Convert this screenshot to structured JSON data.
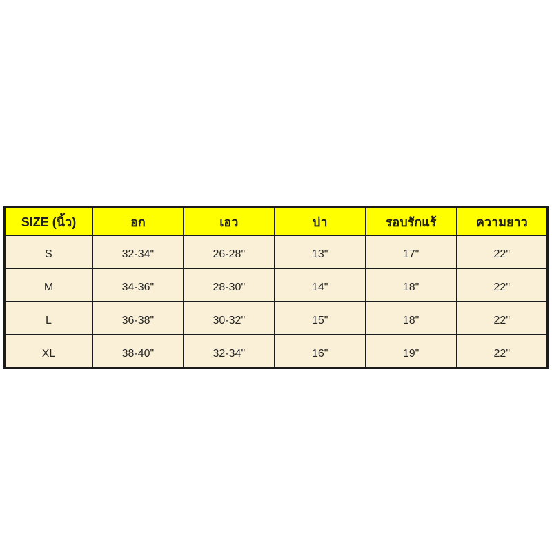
{
  "page": {
    "background": "#ffffff",
    "header_bg": "#ffff00",
    "row_bg": "#faf0d7",
    "border_color": "#1b1b1b",
    "text_color": "#262626"
  },
  "table": {
    "headers": [
      "SIZE (นิ้ว)",
      "อก",
      "เอว",
      "บ่า",
      "รอบรักแร้",
      "ความยาว"
    ],
    "rows": [
      [
        "S",
        "32-34\"",
        "26-28\"",
        "13\"",
        "17\"",
        "22\""
      ],
      [
        "M",
        "34-36\"",
        "28-30\"",
        "14\"",
        "18\"",
        "22\""
      ],
      [
        "L",
        "36-38\"",
        "30-32\"",
        "15\"",
        "18\"",
        "22\""
      ],
      [
        "XL",
        "38-40\"",
        "32-34\"",
        "16\"",
        "19\"",
        "22\""
      ]
    ]
  },
  "chart_data": {
    "type": "table",
    "title": "",
    "columns": [
      "SIZE (นิ้ว)",
      "อก",
      "เอว",
      "บ่า",
      "รอบรักแร้",
      "ความยาว"
    ],
    "rows": [
      [
        "S",
        "32-34\"",
        "26-28\"",
        "13\"",
        "17\"",
        "22\""
      ],
      [
        "M",
        "34-36\"",
        "28-30\"",
        "14\"",
        "18\"",
        "22\""
      ],
      [
        "L",
        "36-38\"",
        "30-32\"",
        "15\"",
        "18\"",
        "22\""
      ],
      [
        "XL",
        "38-40\"",
        "32-34\"",
        "16\"",
        "19\"",
        "22\""
      ]
    ],
    "notes": "Apparel size chart in inches; columns: size, chest, waist, shoulder, around armpit, length"
  }
}
